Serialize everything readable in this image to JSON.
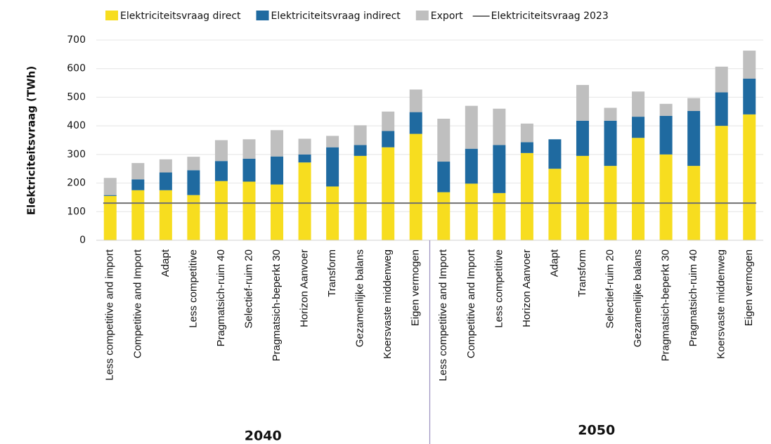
{
  "chart_data": {
    "type": "stacked_bar",
    "y_axis_label": "Elektriciteitsvraag (TWh)",
    "groups": [
      {
        "name": "2040",
        "categories": [
          "Less competitive and import",
          "Competitive and Import",
          "Adapt",
          "Less competitive",
          "Pragmatsich-ruim 40",
          "Selectief-ruim 20",
          "Pragmatsich-beperkt 30",
          "Horizon Aanvoer",
          "Transform",
          "Gezamenlijke balans",
          "Koersvaste middenweg",
          "Eigen vermogen"
        ]
      },
      {
        "name": "2050",
        "categories": [
          "Less competitive and Import",
          "Competitive and Import",
          "Less competitive",
          "Horizon Aanvoer",
          "Adapt",
          "Transform",
          "Selectief-ruim 20",
          "Gezamenlijke balans",
          "Pragmatsich-beperkt 30",
          "Pragmatsich-ruim 40",
          "Koersvaste middenweg",
          "Eigen vermogen"
        ]
      }
    ],
    "series": [
      {
        "name": "Elektriciteitsvraag direct",
        "color": "#f7dd1f",
        "values": [
          155,
          175,
          175,
          158,
          207,
          205,
          195,
          272,
          188,
          295,
          325,
          372,
          168,
          198,
          165,
          305,
          250,
          295,
          260,
          358,
          300,
          260,
          400,
          440
        ]
      },
      {
        "name": "Elektriciteitsvraag indirect",
        "color": "#1f6aa0",
        "values": [
          3,
          38,
          62,
          87,
          70,
          80,
          98,
          28,
          137,
          38,
          57,
          76,
          107,
          122,
          168,
          38,
          103,
          123,
          158,
          74,
          135,
          192,
          117,
          125
        ]
      },
      {
        "name": "Export",
        "color": "#bfbfbf",
        "values": [
          60,
          57,
          46,
          47,
          73,
          68,
          92,
          55,
          40,
          69,
          68,
          79,
          150,
          150,
          127,
          65,
          0,
          125,
          45,
          88,
          42,
          45,
          90,
          98
        ]
      }
    ],
    "reference_line": {
      "name": "Elektriciteitsvraag 2023",
      "value": 130,
      "color": "#707070"
    },
    "ylim": [
      0,
      700
    ],
    "yticks": [
      0,
      100,
      200,
      300,
      400,
      500,
      600,
      700
    ],
    "grid": true
  }
}
